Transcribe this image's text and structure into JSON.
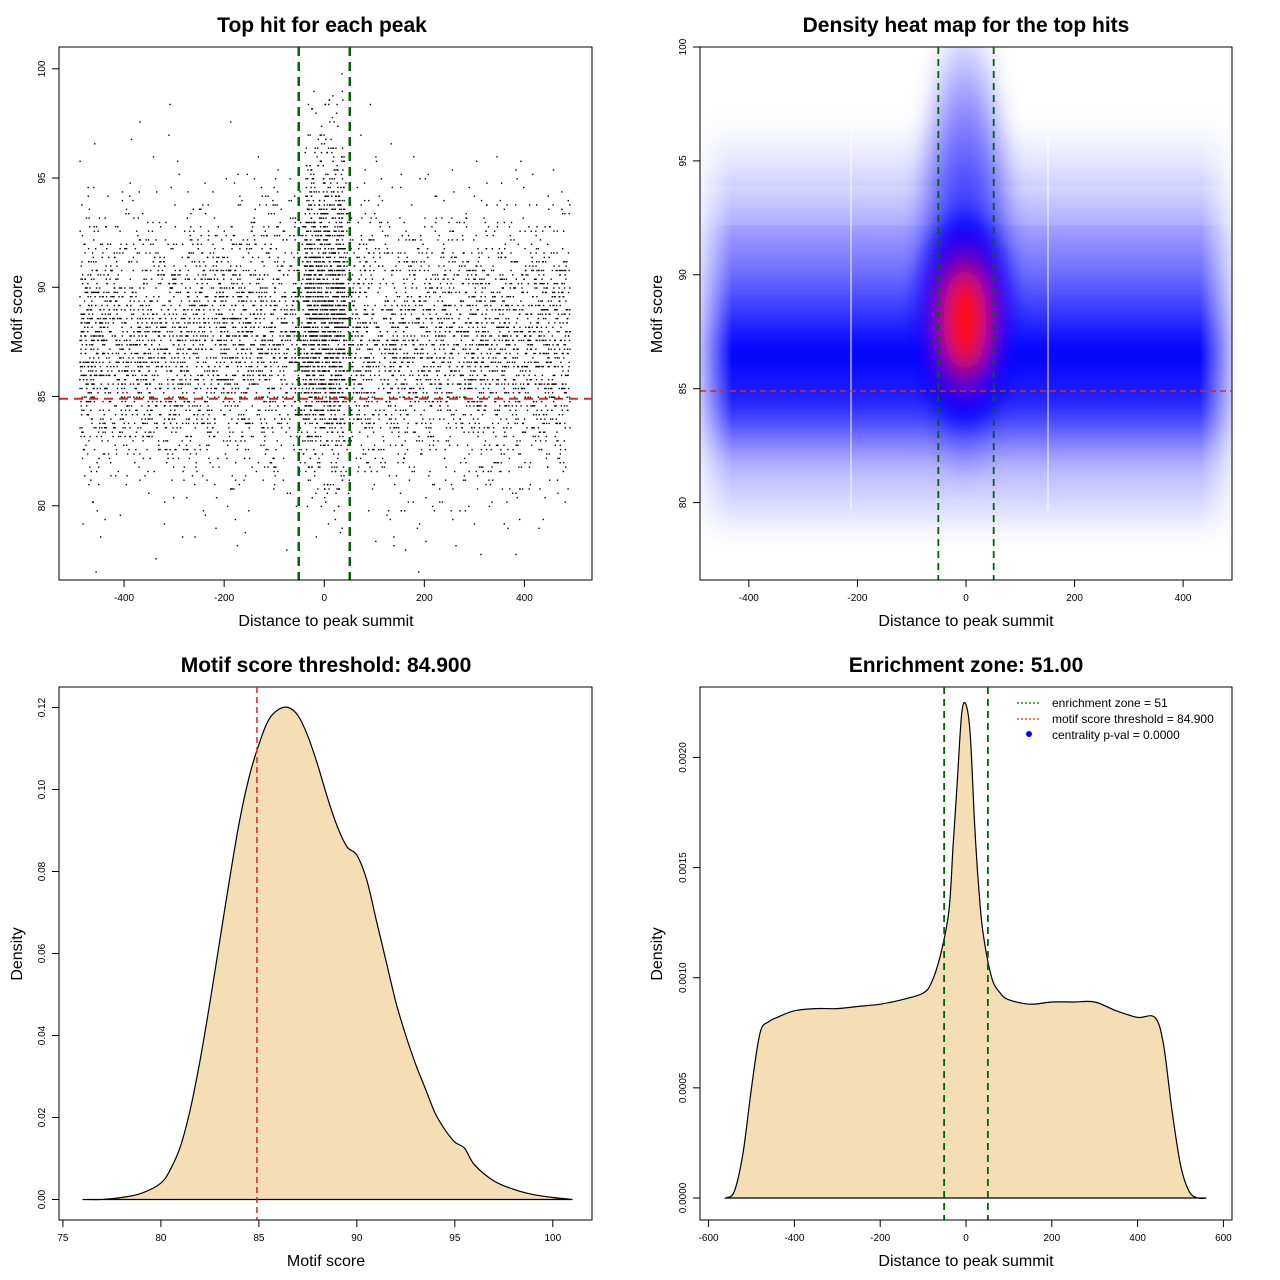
{
  "chart_data": [
    {
      "id": "scatter",
      "type": "scatter",
      "title": "Top hit for each peak",
      "xlabel": "Distance to peak summit",
      "ylabel": "Motif score",
      "xlim": [
        -530,
        535
      ],
      "ylim": [
        76.6,
        101.0
      ],
      "x_ticks": [
        -400,
        -200,
        0,
        200,
        400
      ],
      "y_ticks": [
        80,
        85,
        90,
        95,
        100
      ],
      "threshold_line": {
        "axis": "y",
        "value": 84.9,
        "color": "#d62728"
      },
      "zone_lines": {
        "axis": "x",
        "values": [
          -51,
          51
        ],
        "color": "#006400"
      },
      "points": {
        "x_range": [
          -490,
          490
        ],
        "y_mean": 87.3,
        "y_sd": 3.1,
        "center_half_width": 40,
        "center_y_mean": 89.5,
        "center_y_sd": 3.6,
        "count": 7000
      }
    },
    {
      "id": "heatmap",
      "type": "heatmap",
      "title": "Density heat map for the top hits",
      "xlabel": "Distance to peak summit",
      "ylabel": "Motif score",
      "xlim": [
        -490,
        490
      ],
      "ylim": [
        76.6,
        100.0
      ],
      "x_ticks": [
        -400,
        -200,
        0,
        200,
        400
      ],
      "y_ticks": [
        80,
        85,
        90,
        95,
        100
      ],
      "threshold_line": {
        "axis": "y",
        "value": 84.9,
        "color": "#d62728"
      },
      "zone_lines": {
        "axis": "x",
        "values": [
          -51,
          51
        ],
        "color": "#006400"
      },
      "colors": [
        "#ffffff",
        "#0000ff",
        "#ff0000"
      ]
    },
    {
      "id": "score_density",
      "type": "area",
      "title": "Motif score threshold: 84.900",
      "xlabel": "Motif score",
      "ylabel": "Density",
      "xlim": [
        74.8,
        102.0
      ],
      "ylim": [
        -0.005,
        0.125
      ],
      "x_ticks": [
        75,
        80,
        85,
        90,
        95,
        100
      ],
      "y_ticks": [
        0.0,
        0.02,
        0.04,
        0.06,
        0.08,
        0.1,
        0.12
      ],
      "y_tick_labels": [
        "0.00",
        "0.02",
        "0.04",
        "0.06",
        "0.08",
        "0.10",
        "0.12"
      ],
      "threshold_line": {
        "axis": "x",
        "value": 84.9,
        "color": "#d62728"
      },
      "fill": "#f5deb3",
      "x": [
        76,
        77,
        78,
        79,
        80,
        80.5,
        81,
        81.5,
        82,
        82.5,
        83,
        83.5,
        84,
        84.5,
        85,
        85.5,
        86,
        86.5,
        87,
        87.5,
        88,
        88.5,
        89,
        89.5,
        90,
        90.5,
        91,
        91.5,
        92,
        92.5,
        93,
        93.5,
        94,
        94.5,
        95,
        95.5,
        96,
        97,
        98,
        99,
        100,
        101
      ],
      "y": [
        0.0,
        0.0,
        0.0005,
        0.0015,
        0.004,
        0.0075,
        0.013,
        0.022,
        0.034,
        0.048,
        0.063,
        0.078,
        0.092,
        0.103,
        0.111,
        0.117,
        0.1195,
        0.12,
        0.118,
        0.113,
        0.106,
        0.098,
        0.091,
        0.086,
        0.084,
        0.078,
        0.068,
        0.058,
        0.048,
        0.04,
        0.033,
        0.027,
        0.021,
        0.017,
        0.014,
        0.0125,
        0.0085,
        0.0045,
        0.0025,
        0.0012,
        0.0005,
        0.0
      ]
    },
    {
      "id": "distance_density",
      "type": "area",
      "title": "Enrichment zone: 51.00",
      "xlabel": "Distance to peak summit",
      "ylabel": "Density",
      "xlim": [
        -620,
        620
      ],
      "ylim": [
        -0.0001,
        0.00232
      ],
      "x_ticks": [
        -600,
        -400,
        -200,
        0,
        200,
        400,
        600
      ],
      "y_ticks": [
        0.0,
        0.0005,
        0.001,
        0.0015,
        0.002
      ],
      "y_tick_labels": [
        "0.0000",
        "0.0005",
        "0.0010",
        "0.0015",
        "0.0020"
      ],
      "threshold_line": null,
      "zone_lines": {
        "axis": "x",
        "values": [
          -51,
          51
        ],
        "color": "#006400"
      },
      "fill": "#f5deb3",
      "x": [
        -560,
        -540,
        -520,
        -500,
        -480,
        -460,
        -440,
        -400,
        -350,
        -300,
        -250,
        -200,
        -150,
        -100,
        -80,
        -60,
        -40,
        -30,
        -20,
        -10,
        0,
        10,
        20,
        30,
        40,
        60,
        80,
        100,
        150,
        200,
        250,
        300,
        350,
        400,
        440,
        460,
        480,
        500,
        520,
        540,
        560
      ],
      "y": [
        0.0,
        3e-05,
        0.0002,
        0.0005,
        0.00075,
        0.0008,
        0.00082,
        0.00085,
        0.00086,
        0.00086,
        0.00087,
        0.00088,
        0.0009,
        0.00093,
        0.00098,
        0.0011,
        0.0013,
        0.0016,
        0.0019,
        0.0022,
        0.00224,
        0.0021,
        0.0017,
        0.0014,
        0.0012,
        0.001,
        0.00093,
        0.0009,
        0.00088,
        0.00089,
        0.00089,
        0.00089,
        0.00085,
        0.00082,
        0.00082,
        0.0007,
        0.0004,
        0.00015,
        3e-05,
        0.0,
        0.0
      ],
      "legend": {
        "position": "top-right",
        "entries": [
          {
            "label": "enrichment zone = 51",
            "symbol": "dotted-line",
            "color": "#006400"
          },
          {
            "label": "motif score threshold = 84.900",
            "symbol": "dotted-line",
            "color": "#d62728"
          },
          {
            "label": "centrality p-val = 0.0000",
            "symbol": "point",
            "color": "#0000ff"
          }
        ]
      }
    }
  ]
}
